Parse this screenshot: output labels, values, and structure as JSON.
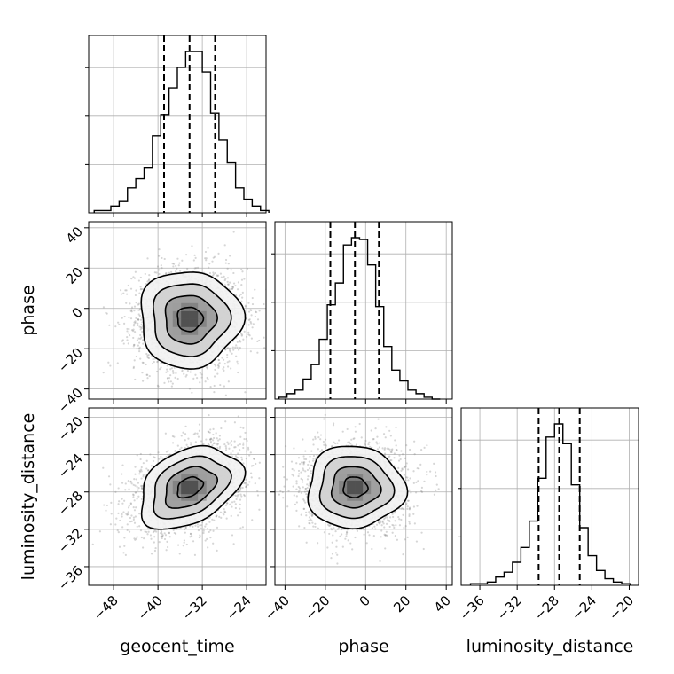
{
  "chart_data": {
    "type": "corner",
    "parameters": [
      "geocent_time",
      "phase",
      "luminosity_distance"
    ],
    "axis_labels": {
      "x": [
        "geocent_time",
        "phase",
        "luminosity_distance"
      ],
      "y": [
        "phase",
        "luminosity_distance"
      ]
    },
    "ranges": {
      "geocent_time": [
        -52.5,
        -20.5
      ],
      "phase": [
        -45,
        43
      ],
      "luminosity_distance": [
        -38,
        -19
      ]
    },
    "ticks": {
      "geocent_time": [
        -48,
        -40,
        -32,
        -24
      ],
      "phase": [
        -40,
        -20,
        0,
        20,
        40
      ],
      "luminosity_distance": [
        -36,
        -32,
        -28,
        -24,
        -20
      ]
    },
    "tick_labels": {
      "geocent_time": [
        "−48",
        "−40",
        "−32",
        "−24"
      ],
      "phase": [
        "−40",
        "−20",
        "0",
        "20",
        "40"
      ],
      "luminosity_distance": [
        "−36",
        "−32",
        "−28",
        "−24",
        "−20"
      ]
    },
    "quantiles": {
      "geocent_time": [
        -38.9,
        -34.3,
        -29.7
      ],
      "phase": [
        -17.5,
        -5.3,
        6.6
      ],
      "luminosity_distance": [
        -29.7,
        -27.5,
        -25.3
      ]
    },
    "marginals": {
      "geocent_time": {
        "edges_start": -51.5,
        "bin_width": 1.5,
        "counts": [
          1,
          1,
          3,
          5,
          11,
          15,
          20,
          34,
          43,
          55,
          64,
          71,
          71,
          62,
          44,
          32,
          22,
          11,
          6,
          3,
          1
        ]
      },
      "phase": {
        "edges_start": -43,
        "bin_width": 4,
        "counts": [
          1,
          3,
          5,
          11,
          19,
          33,
          52,
          64,
          85,
          89,
          88,
          74,
          51,
          29,
          16,
          10,
          5,
          3,
          1,
          0
        ]
      },
      "luminosity_distance": {
        "edges_start": -37,
        "bin_width": 0.9,
        "counts": [
          1,
          1,
          2,
          5,
          8,
          14,
          23,
          39,
          65,
          90,
          98,
          86,
          61,
          35,
          18,
          9,
          4,
          2,
          1
        ]
      }
    },
    "joint": [
      {
        "x": "geocent_time",
        "y": "phase",
        "x_mean": -34.3,
        "x_sd": 4.6,
        "y_mean": -5.3,
        "y_sd": 12,
        "rho": 0.0
      },
      {
        "x": "geocent_time",
        "y": "luminosity_distance",
        "x_mean": -34.3,
        "x_sd": 4.6,
        "y_mean": -27.5,
        "y_sd": 2.2,
        "rho": 0.35
      },
      {
        "x": "phase",
        "y": "luminosity_distance",
        "x_mean": -5.3,
        "x_sd": 12,
        "y_mean": -27.5,
        "y_sd": 2.2,
        "rho": 0.0
      }
    ],
    "contour_levels_sigma": [
      0.5,
      1.0,
      1.5,
      2.0
    ],
    "grid": true,
    "colors": {
      "line": "#000000",
      "grid": "#b0b0b0",
      "scatter": "#8a8a8a"
    }
  }
}
